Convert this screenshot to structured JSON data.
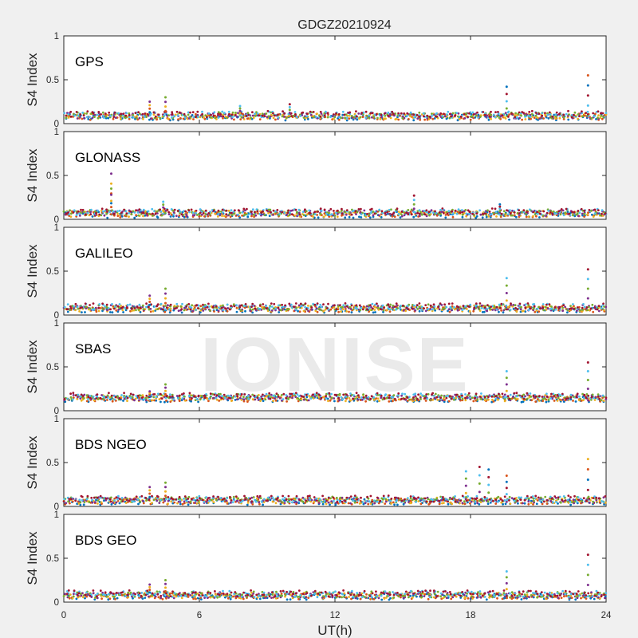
{
  "chart_data": {
    "type": "scatter",
    "title": "GDGZ20210924",
    "xlabel": "UT(h)",
    "ylabel": "S4 Index",
    "xlim": [
      0,
      24
    ],
    "ylim": [
      0,
      1
    ],
    "x_ticks": [
      "0",
      "6",
      "12",
      "18",
      "24"
    ],
    "y_ticks": [
      "0",
      "0.5",
      "1"
    ],
    "watermark": "IONISE",
    "series_colors": [
      "#0072BD",
      "#D95319",
      "#EDB120",
      "#7E2F8E",
      "#77AC30",
      "#4DBEEE",
      "#A2142F"
    ],
    "panels": [
      {
        "label": "GPS",
        "baseline": 0.09,
        "spikes": [
          {
            "x": 3.8,
            "y": 0.25
          },
          {
            "x": 4.5,
            "y": 0.3
          },
          {
            "x": 7.8,
            "y": 0.2
          },
          {
            "x": 10.0,
            "y": 0.22
          },
          {
            "x": 19.6,
            "y": 0.42
          },
          {
            "x": 23.2,
            "y": 0.55
          }
        ]
      },
      {
        "label": "GLONASS",
        "baseline": 0.07,
        "spikes": [
          {
            "x": 2.1,
            "y": 0.52
          },
          {
            "x": 2.1,
            "y": 0.35
          },
          {
            "x": 4.4,
            "y": 0.2
          },
          {
            "x": 15.5,
            "y": 0.27
          },
          {
            "x": 19.3,
            "y": 0.17
          }
        ]
      },
      {
        "label": "GALILEO",
        "baseline": 0.08,
        "spikes": [
          {
            "x": 3.8,
            "y": 0.22
          },
          {
            "x": 4.5,
            "y": 0.3
          },
          {
            "x": 19.6,
            "y": 0.42
          },
          {
            "x": 23.2,
            "y": 0.52
          }
        ]
      },
      {
        "label": "SBAS",
        "baseline": 0.15,
        "spikes": [
          {
            "x": 3.8,
            "y": 0.22
          },
          {
            "x": 4.5,
            "y": 0.3
          },
          {
            "x": 19.6,
            "y": 0.45
          },
          {
            "x": 23.2,
            "y": 0.55
          }
        ]
      },
      {
        "label": "BDS NGEO",
        "baseline": 0.07,
        "spikes": [
          {
            "x": 3.8,
            "y": 0.22
          },
          {
            "x": 4.5,
            "y": 0.27
          },
          {
            "x": 17.8,
            "y": 0.4
          },
          {
            "x": 18.4,
            "y": 0.45
          },
          {
            "x": 18.8,
            "y": 0.42
          },
          {
            "x": 19.6,
            "y": 0.35
          },
          {
            "x": 23.2,
            "y": 0.54
          }
        ]
      },
      {
        "label": "BDS GEO",
        "baseline": 0.08,
        "spikes": [
          {
            "x": 3.8,
            "y": 0.2
          },
          {
            "x": 4.5,
            "y": 0.25
          },
          {
            "x": 19.6,
            "y": 0.35
          },
          {
            "x": 23.2,
            "y": 0.54
          }
        ]
      }
    ]
  }
}
